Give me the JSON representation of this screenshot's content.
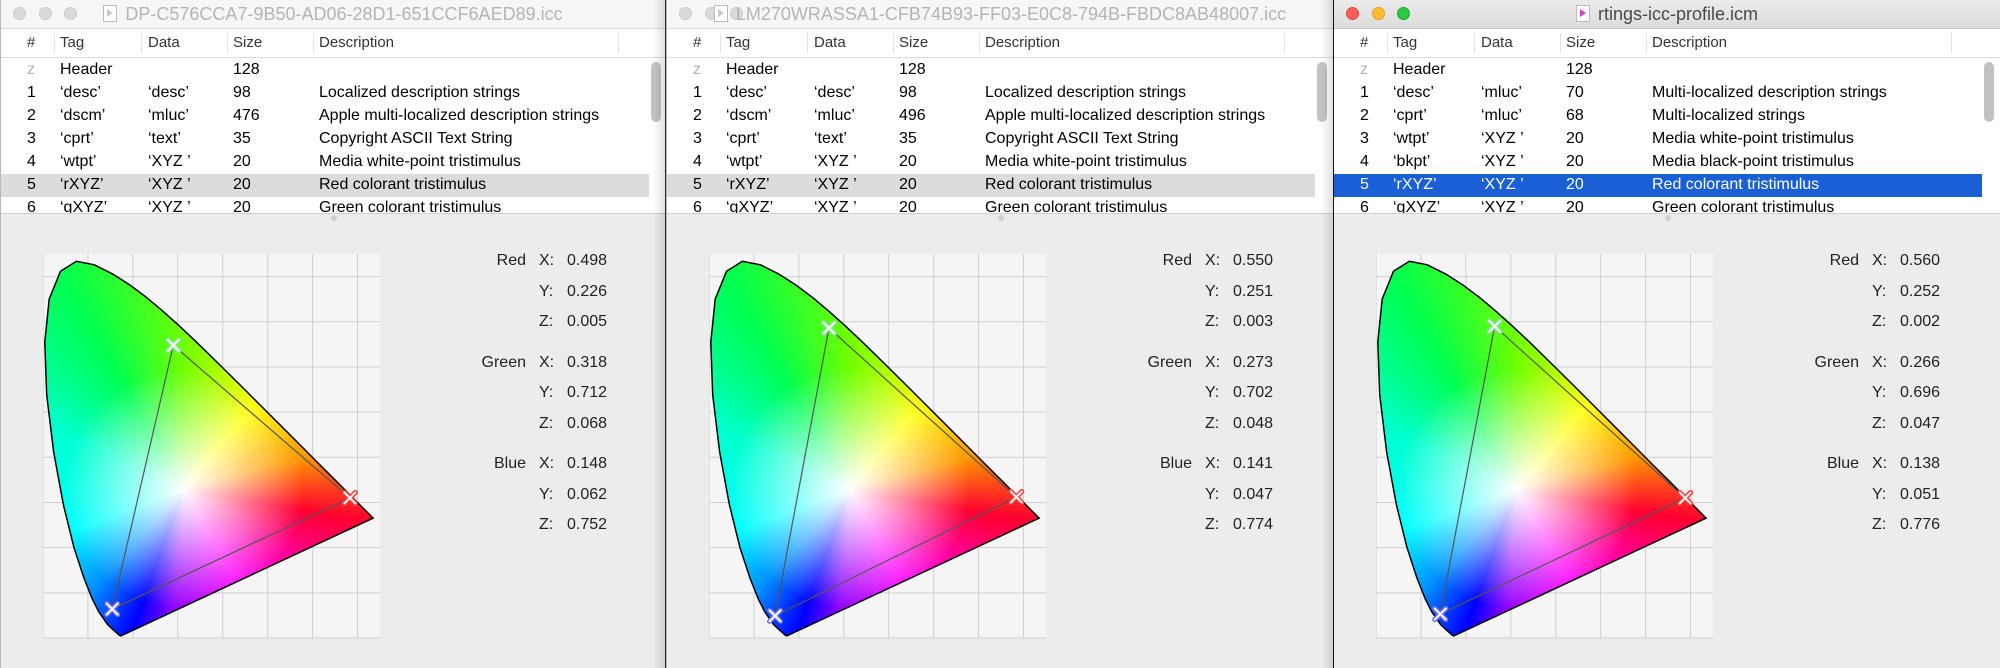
{
  "columns": [
    "#",
    "Tag",
    "Data",
    "Size",
    "Description"
  ],
  "colors": {
    "selection_active": "#1b5fd6",
    "selection_inactive": "#dcdcdc",
    "close": "#fc5f57",
    "minimize": "#fdbc2e",
    "zoom": "#29c940"
  },
  "windows": [
    {
      "title": "DP-C576CCA7-9B50-AD06-28D1-651CCF6AED89.icc",
      "active": false,
      "selected_row": 5,
      "rows": [
        [
          "z",
          "Header",
          "",
          "128",
          ""
        ],
        [
          "1",
          "‘desc’",
          "‘desc’",
          "98",
          "Localized description strings"
        ],
        [
          "2",
          "‘dscm’",
          "‘mluc’",
          "476",
          "Apple multi-localized description strings"
        ],
        [
          "3",
          "‘cprt’",
          "‘text’",
          "35",
          "Copyright ASCII Text String"
        ],
        [
          "4",
          "‘wtpt’",
          "‘XYZ ’",
          "20",
          "Media white-point tristimulus"
        ],
        [
          "5",
          "‘rXYZ’",
          "‘XYZ ’",
          "20",
          "Red colorant tristimulus"
        ],
        [
          "6",
          "‘gXYZ’",
          "‘XYZ ’",
          "20",
          "Green colorant tristimulus"
        ]
      ],
      "primaries": [
        {
          "name": "Red",
          "X": "0.498",
          "Y": "0.226",
          "Z": "0.005"
        },
        {
          "name": "Green",
          "X": "0.318",
          "Y": "0.712",
          "Z": "0.068"
        },
        {
          "name": "Blue",
          "X": "0.148",
          "Y": "0.062",
          "Z": "0.752"
        }
      ]
    },
    {
      "title": "LM270WRASSA1-CFB74B93-FF03-E0C8-794B-FBDC8AB48007.icc",
      "active": false,
      "selected_row": 5,
      "rows": [
        [
          "z",
          "Header",
          "",
          "128",
          ""
        ],
        [
          "1",
          "‘desc’",
          "‘desc’",
          "98",
          "Localized description strings"
        ],
        [
          "2",
          "‘dscm’",
          "‘mluc’",
          "496",
          "Apple multi-localized description strings"
        ],
        [
          "3",
          "‘cprt’",
          "‘text’",
          "35",
          "Copyright ASCII Text String"
        ],
        [
          "4",
          "‘wtpt’",
          "‘XYZ ’",
          "20",
          "Media white-point tristimulus"
        ],
        [
          "5",
          "‘rXYZ’",
          "‘XYZ ’",
          "20",
          "Red colorant tristimulus"
        ],
        [
          "6",
          "‘gXYZ’",
          "‘XYZ ’",
          "20",
          "Green colorant tristimulus"
        ]
      ],
      "primaries": [
        {
          "name": "Red",
          "X": "0.550",
          "Y": "0.251",
          "Z": "0.003"
        },
        {
          "name": "Green",
          "X": "0.273",
          "Y": "0.702",
          "Z": "0.048"
        },
        {
          "name": "Blue",
          "X": "0.141",
          "Y": "0.047",
          "Z": "0.774"
        }
      ]
    },
    {
      "title": "rtings-icc-profile.icm",
      "active": true,
      "selected_row": 5,
      "rows": [
        [
          "z",
          "Header",
          "",
          "128",
          ""
        ],
        [
          "1",
          "‘desc’",
          "‘mluc’",
          "70",
          "Multi-localized description strings"
        ],
        [
          "2",
          "‘cprt’",
          "‘mluc’",
          "68",
          "Multi-localized strings"
        ],
        [
          "3",
          "‘wtpt’",
          "‘XYZ ’",
          "20",
          "Media white-point tristimulus"
        ],
        [
          "4",
          "‘bkpt’",
          "‘XYZ ’",
          "20",
          "Media black-point tristimulus"
        ],
        [
          "5",
          "‘rXYZ’",
          "‘XYZ ’",
          "20",
          "Red colorant tristimulus"
        ],
        [
          "6",
          "‘gXYZ’",
          "‘XYZ ’",
          "20",
          "Green colorant tristimulus"
        ]
      ],
      "primaries": [
        {
          "name": "Red",
          "X": "0.560",
          "Y": "0.252",
          "Z": "0.002"
        },
        {
          "name": "Green",
          "X": "0.266",
          "Y": "0.696",
          "Z": "0.047"
        },
        {
          "name": "Blue",
          "X": "0.138",
          "Y": "0.051",
          "Z": "0.776"
        }
      ]
    }
  ],
  "chart_data": [
    {
      "type": "scatter",
      "xlim": [
        0,
        0.75
      ],
      "ylim": [
        0,
        0.85
      ],
      "grid": true,
      "points": [
        {
          "name": "Red",
          "x": 0.683,
          "y": 0.31
        },
        {
          "name": "Green",
          "x": 0.29,
          "y": 0.648
        },
        {
          "name": "Blue",
          "x": 0.154,
          "y": 0.064
        }
      ]
    },
    {
      "type": "scatter",
      "xlim": [
        0,
        0.75
      ],
      "ylim": [
        0,
        0.85
      ],
      "grid": true,
      "points": [
        {
          "name": "Red",
          "x": 0.684,
          "y": 0.312
        },
        {
          "name": "Green",
          "x": 0.267,
          "y": 0.686
        },
        {
          "name": "Blue",
          "x": 0.147,
          "y": 0.049
        }
      ]
    },
    {
      "type": "scatter",
      "xlim": [
        0,
        0.75
      ],
      "ylim": [
        0,
        0.85
      ],
      "grid": true,
      "points": [
        {
          "name": "Red",
          "x": 0.688,
          "y": 0.31
        },
        {
          "name": "Green",
          "x": 0.264,
          "y": 0.69
        },
        {
          "name": "Blue",
          "x": 0.143,
          "y": 0.053
        }
      ]
    }
  ]
}
